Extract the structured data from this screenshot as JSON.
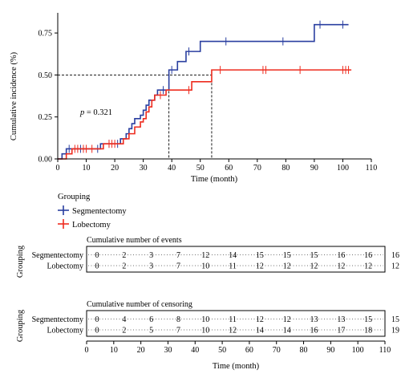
{
  "chart_data": {
    "type": "line",
    "subtype": "cumulative-incidence-step",
    "ylabel": "Cumulative incidence (%)",
    "xlabel": "Time (month)",
    "xlim": [
      0,
      110
    ],
    "ylim": [
      0,
      0.87
    ],
    "xticks": [
      "0",
      "10",
      "20",
      "30",
      "40",
      "50",
      "60",
      "70",
      "80",
      "90",
      "100",
      "110"
    ],
    "yticks": [
      "0.00",
      "0.25",
      "0.50",
      "0.75"
    ],
    "annotation_text": "p = 0.321",
    "annotation_parts": [
      "p",
      " = 0.321"
    ],
    "reference_y": 0.5,
    "reference_x": [
      39,
      54
    ],
    "legend_title": "Grouping",
    "legend_position": "bottom-left",
    "colors": {
      "Segmentectomy": "#2a3fa0",
      "Lobectomy": "#ee2c1f"
    },
    "series": [
      {
        "name": "Segmentectomy",
        "color": "#2a3fa0",
        "steps": [
          [
            0,
            0
          ],
          [
            1.5,
            0.03
          ],
          [
            3,
            0.06
          ],
          [
            15,
            0.09
          ],
          [
            22,
            0.12
          ],
          [
            24,
            0.15
          ],
          [
            25,
            0.18
          ],
          [
            26,
            0.21
          ],
          [
            27,
            0.24
          ],
          [
            29,
            0.26
          ],
          [
            30,
            0.29
          ],
          [
            31,
            0.32
          ],
          [
            32,
            0.35
          ],
          [
            34,
            0.38
          ],
          [
            35,
            0.41
          ],
          [
            39,
            0.53
          ],
          [
            42,
            0.58
          ],
          [
            45,
            0.64
          ],
          [
            50,
            0.7
          ],
          [
            90,
            0.8
          ],
          [
            102,
            0.8
          ]
        ],
        "censored": [
          4,
          8,
          14,
          18,
          21,
          37,
          40,
          46,
          59,
          79,
          92,
          100
        ]
      },
      {
        "name": "Lobectomy",
        "color": "#ee2c1f",
        "steps": [
          [
            0,
            0
          ],
          [
            3,
            0.03
          ],
          [
            5,
            0.06
          ],
          [
            16,
            0.09
          ],
          [
            23,
            0.12
          ],
          [
            25,
            0.15
          ],
          [
            27,
            0.19
          ],
          [
            29,
            0.22
          ],
          [
            30,
            0.24
          ],
          [
            31,
            0.28
          ],
          [
            32,
            0.31
          ],
          [
            33,
            0.35
          ],
          [
            34,
            0.38
          ],
          [
            38,
            0.41
          ],
          [
            47,
            0.46
          ],
          [
            54,
            0.53
          ],
          [
            103,
            0.53
          ]
        ],
        "censored": [
          6,
          7,
          9,
          10,
          12,
          18,
          19,
          20,
          36,
          46,
          57,
          72,
          73,
          85,
          100,
          101,
          102
        ]
      }
    ],
    "tables": [
      {
        "title": "Cumulative number of events",
        "row_label": "Grouping",
        "time_points": [
          0,
          10,
          20,
          30,
          40,
          50,
          60,
          70,
          80,
          90,
          100,
          110
        ],
        "rows": [
          {
            "name": "Segmentectomy",
            "values": [
              "0",
              "2",
              "3",
              "7",
              "12",
              "14",
              "15",
              "15",
              "15",
              "16",
              "16",
              "16"
            ]
          },
          {
            "name": "Lobectomy",
            "values": [
              "0",
              "2",
              "3",
              "7",
              "10",
              "11",
              "12",
              "12",
              "12",
              "12",
              "12",
              "12"
            ]
          }
        ]
      },
      {
        "title": "Cumulative number of censoring",
        "row_label": "Grouping",
        "time_points": [
          0,
          10,
          20,
          30,
          40,
          50,
          60,
          70,
          80,
          90,
          100,
          110
        ],
        "rows": [
          {
            "name": "Segmentectomy",
            "values": [
              "0",
              "4",
              "6",
              "8",
              "10",
              "11",
              "12",
              "12",
              "13",
              "13",
              "15",
              "15"
            ]
          },
          {
            "name": "Lobectomy",
            "values": [
              "0",
              "2",
              "5",
              "7",
              "10",
              "12",
              "14",
              "14",
              "16",
              "17",
              "18",
              "19"
            ]
          }
        ]
      }
    ]
  }
}
